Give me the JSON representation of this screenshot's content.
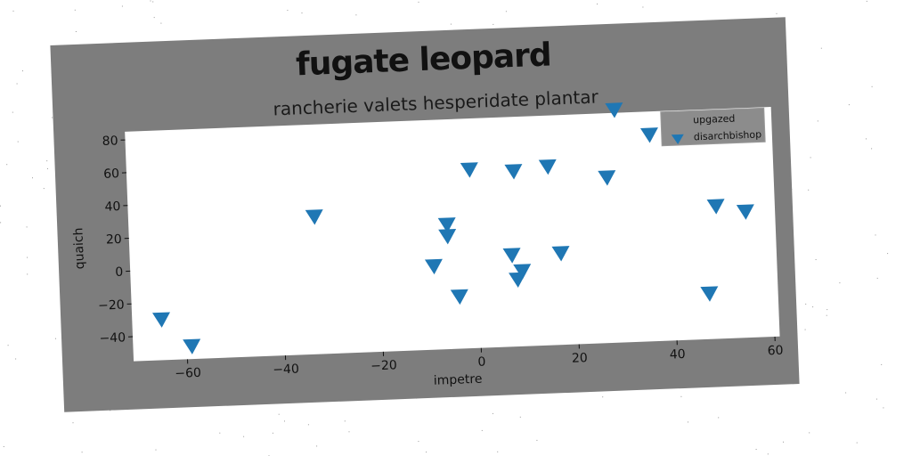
{
  "colors": {
    "figure_background": "#7d7d7d",
    "plot_background": "#ffffff",
    "marker": "#1f77b4",
    "legend_background": "#8c8c8c"
  },
  "chart_data": {
    "type": "scatter",
    "suptitle": "fugate leopard",
    "title": "rancherie valets hesperidate plantar",
    "xlabel": "impetre",
    "ylabel": "quaich",
    "xlim": [
      -71,
      61
    ],
    "ylim": [
      -55,
      85
    ],
    "xticks": [
      -60,
      -40,
      -20,
      0,
      20,
      40,
      60
    ],
    "yticks": [
      -40,
      -20,
      0,
      20,
      40,
      60,
      80
    ],
    "grid": false,
    "legend_placement": "top-right",
    "legend": [
      {
        "label": "upgazed",
        "marker": "none"
      },
      {
        "label": "disarchbishop",
        "marker": "triangle-down"
      }
    ],
    "series": [
      {
        "name": "disarchbishop",
        "marker": "triangle-down",
        "x": [
          -65,
          -59,
          -33,
          -9,
          -6,
          -6,
          -4,
          -1,
          7,
          8,
          8,
          9,
          15,
          17,
          27,
          29,
          36,
          47,
          49,
          55
        ],
        "y": [
          -30,
          -47,
          29,
          -4,
          21,
          14,
          -23,
          54,
          1,
          52,
          -14,
          -9,
          54,
          1,
          46,
          87,
          71,
          -27,
          26,
          22
        ]
      }
    ]
  }
}
